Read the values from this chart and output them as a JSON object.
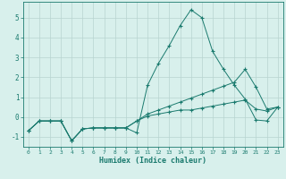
{
  "xlabel": "Humidex (Indice chaleur)",
  "x": [
    0,
    1,
    2,
    3,
    4,
    5,
    6,
    7,
    8,
    9,
    10,
    11,
    12,
    13,
    14,
    15,
    16,
    17,
    18,
    19,
    20,
    21,
    22,
    23
  ],
  "line1": [
    -0.7,
    -0.2,
    -0.2,
    -0.2,
    -1.2,
    -0.6,
    -0.55,
    -0.55,
    -0.55,
    -0.55,
    -0.8,
    1.6,
    2.7,
    3.6,
    4.6,
    5.4,
    5.0,
    3.3,
    2.4,
    1.6,
    0.9,
    -0.15,
    -0.2,
    0.5
  ],
  "line2": [
    -0.7,
    -0.2,
    -0.2,
    -0.2,
    -1.2,
    -0.6,
    -0.55,
    -0.55,
    -0.55,
    -0.55,
    -0.2,
    0.15,
    0.35,
    0.55,
    0.75,
    0.95,
    1.15,
    1.35,
    1.55,
    1.75,
    2.4,
    1.5,
    0.4,
    0.5
  ],
  "line3": [
    -0.7,
    -0.2,
    -0.2,
    -0.2,
    -1.2,
    -0.6,
    -0.55,
    -0.55,
    -0.55,
    -0.55,
    -0.2,
    0.05,
    0.15,
    0.25,
    0.35,
    0.35,
    0.45,
    0.55,
    0.65,
    0.75,
    0.85,
    0.4,
    0.3,
    0.5
  ],
  "line_color": "#1a7a6e",
  "bg_color": "#d8f0ec",
  "grid_color": "#b8d4d0",
  "ylim": [
    -1.5,
    5.8
  ],
  "xlim": [
    -0.5,
    23.5
  ],
  "yticks": [
    -1,
    0,
    1,
    2,
    3,
    4,
    5
  ],
  "xticks": [
    0,
    1,
    2,
    3,
    4,
    5,
    6,
    7,
    8,
    9,
    10,
    11,
    12,
    13,
    14,
    15,
    16,
    17,
    18,
    19,
    20,
    21,
    22,
    23
  ],
  "marker": "+"
}
